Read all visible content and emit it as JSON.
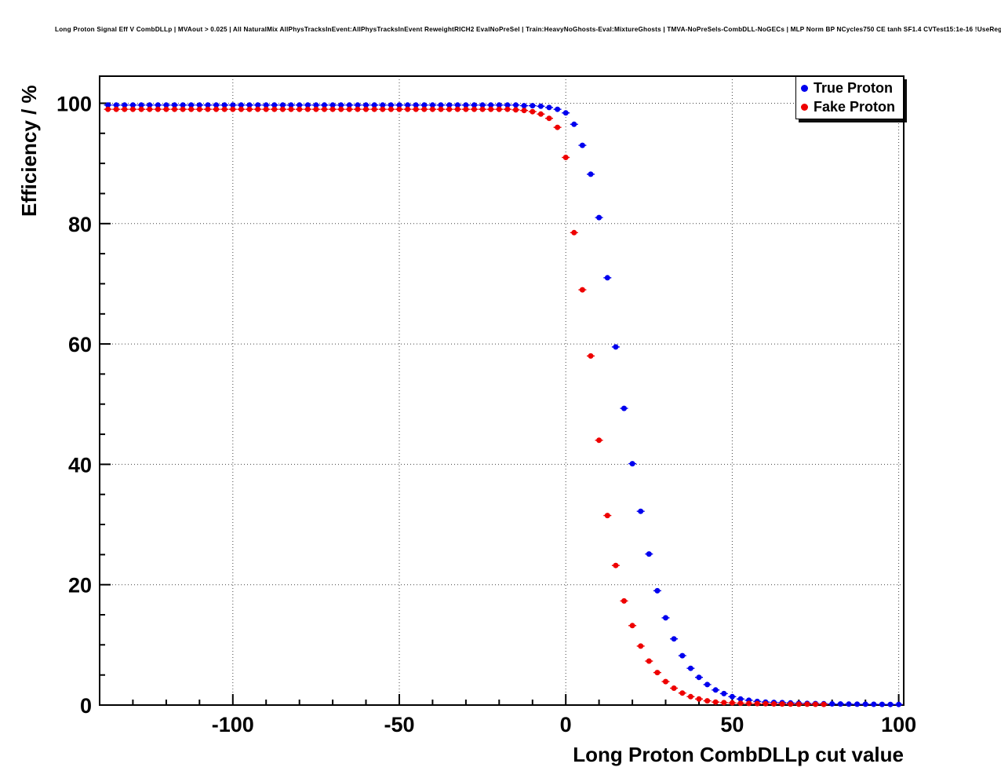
{
  "title": "Long Proton Signal Eff V CombDLLp | MVAout > 0.025 | All NaturalMix AllPhysTracksInEvent:AllPhysTracksInEvent ReweightRICH2 EvalNoPreSel | Train:HeavyNoGhosts-Eval:MixtureGhosts | TMVA-NoPreSels-CombDLL-NoGECs | MLP Norm BP NCycles750 CE tanh SF1.4 CVTest15:1e-16 !UseReg",
  "chart_data": {
    "type": "scatter",
    "title": "Long Proton Signal Eff V CombDLLp",
    "xlabel": "Long Proton CombDLLp cut value",
    "ylabel": "Efficiency / %",
    "xlim": [
      -140,
      101.5
    ],
    "ylim": [
      0,
      104.5
    ],
    "x_ticks": [
      -100,
      -50,
      0,
      50,
      100
    ],
    "y_ticks": [
      0,
      20,
      40,
      60,
      80,
      100
    ],
    "x_minor_step": 10,
    "y_minor_step": 5,
    "grid": true,
    "legend_position": "top-right",
    "x": [
      -137.5,
      -135,
      -132.5,
      -130,
      -127.5,
      -125,
      -122.5,
      -120,
      -117.5,
      -115,
      -112.5,
      -110,
      -107.5,
      -105,
      -102.5,
      -100,
      -97.5,
      -95,
      -92.5,
      -90,
      -87.5,
      -85,
      -82.5,
      -80,
      -77.5,
      -75,
      -72.5,
      -70,
      -67.5,
      -65,
      -62.5,
      -60,
      -57.5,
      -55,
      -52.5,
      -50,
      -47.5,
      -45,
      -42.5,
      -40,
      -37.5,
      -35,
      -32.5,
      -30,
      -27.5,
      -25,
      -22.5,
      -20,
      -17.5,
      -15,
      -12.5,
      -10,
      -7.5,
      -5,
      -2.5,
      0,
      2.5,
      5,
      7.5,
      10,
      12.5,
      15,
      17.5,
      20,
      22.5,
      25,
      27.5,
      30,
      32.5,
      35,
      37.5,
      40,
      42.5,
      45,
      47.5,
      50,
      52.5,
      55,
      57.5,
      60,
      62.5,
      65,
      67.5,
      70,
      72.5,
      75,
      77.5,
      80,
      82.5,
      85,
      87.5,
      90,
      92.5,
      95,
      97.5,
      100
    ],
    "series": [
      {
        "name": "True Proton",
        "color": "#0000ee",
        "values": [
          99.7,
          99.7,
          99.7,
          99.7,
          99.7,
          99.7,
          99.7,
          99.7,
          99.7,
          99.7,
          99.7,
          99.7,
          99.7,
          99.7,
          99.7,
          99.7,
          99.7,
          99.7,
          99.7,
          99.7,
          99.7,
          99.7,
          99.7,
          99.7,
          99.7,
          99.7,
          99.7,
          99.7,
          99.7,
          99.7,
          99.7,
          99.7,
          99.7,
          99.7,
          99.7,
          99.7,
          99.7,
          99.7,
          99.7,
          99.7,
          99.7,
          99.7,
          99.7,
          99.7,
          99.7,
          99.7,
          99.7,
          99.7,
          99.7,
          99.7,
          99.6,
          99.6,
          99.5,
          99.3,
          99.0,
          98.4,
          96.5,
          93.0,
          88.2,
          81.0,
          71.0,
          59.5,
          49.3,
          40.1,
          32.2,
          25.1,
          19.0,
          14.5,
          11.0,
          8.2,
          6.1,
          4.6,
          3.4,
          2.5,
          1.9,
          1.4,
          1.0,
          0.8,
          0.6,
          0.5,
          0.45,
          0.4,
          0.35,
          0.3,
          0.28,
          0.25,
          0.22,
          0.2,
          0.18,
          0.16,
          0.15,
          0.14,
          0.13,
          0.12,
          0.11,
          0.1
        ]
      },
      {
        "name": "Fake Proton",
        "color": "#ee0000",
        "values": [
          99.0,
          99.0,
          99.0,
          99.0,
          99.0,
          99.0,
          99.0,
          99.0,
          99.0,
          99.0,
          99.0,
          99.0,
          99.0,
          99.0,
          99.0,
          99.0,
          99.0,
          99.0,
          99.0,
          99.0,
          99.0,
          99.0,
          99.0,
          99.0,
          99.0,
          99.0,
          99.0,
          99.0,
          99.0,
          99.0,
          99.0,
          99.0,
          99.0,
          99.0,
          99.0,
          99.0,
          99.0,
          99.0,
          99.0,
          99.0,
          99.0,
          99.0,
          99.0,
          99.0,
          99.0,
          99.0,
          99.0,
          99.0,
          99.0,
          98.9,
          98.8,
          98.6,
          98.2,
          97.5,
          96.0,
          91.0,
          78.5,
          69.0,
          58.0,
          44.0,
          31.5,
          23.2,
          17.3,
          13.2,
          9.8,
          7.3,
          5.4,
          3.9,
          2.8,
          2.0,
          1.4,
          1.0,
          0.7,
          0.5,
          0.4,
          0.35,
          0.3,
          0.28,
          0.25,
          0.22,
          0.2,
          0.18,
          0.16,
          0.15,
          0.14,
          0.13,
          0.12,
          null,
          null,
          null,
          null,
          null,
          null,
          null,
          null,
          null
        ]
      }
    ]
  }
}
